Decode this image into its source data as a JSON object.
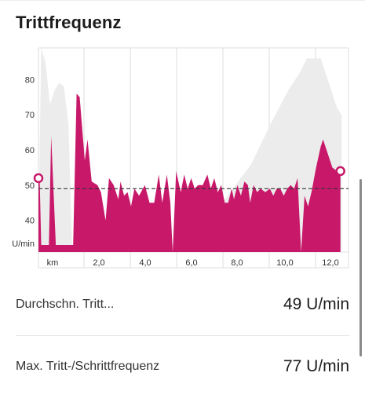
{
  "title": "Trittfrequenz",
  "stats": [
    {
      "label": "Durchschn. Tritt...",
      "value": "49 U/min"
    },
    {
      "label": "Max. Tritt-/Schrittfrequenz",
      "value": "77 U/min"
    }
  ],
  "colors": {
    "cadence": "#c8186a",
    "elevation": "#ececec",
    "grid": "#dcdcdc",
    "average_line": "#333333"
  },
  "chart_data": {
    "type": "area",
    "title": "Trittfrequenz",
    "ylabel": "U/min",
    "xlabel": "km",
    "x_tick_labels": [
      "km",
      "2,0",
      "4,0",
      "6,0",
      "8,0",
      "10,0",
      "12,0"
    ],
    "y_tick_labels": [
      "80",
      "70",
      "60",
      "50",
      "40",
      "U/min"
    ],
    "ylim": [
      31,
      89
    ],
    "xlim": [
      0,
      13.4
    ],
    "average_line": 49,
    "series": [
      {
        "role": "cadence",
        "points": [
          [
            0.0,
            52
          ],
          [
            0.05,
            52
          ],
          [
            0.12,
            33
          ],
          [
            0.45,
            33
          ],
          [
            0.55,
            64
          ],
          [
            0.75,
            33
          ],
          [
            1.5,
            33
          ],
          [
            1.65,
            76
          ],
          [
            1.78,
            75
          ],
          [
            2.0,
            57
          ],
          [
            2.12,
            63
          ],
          [
            2.3,
            51
          ],
          [
            2.55,
            50
          ],
          [
            2.7,
            48
          ],
          [
            2.9,
            40
          ],
          [
            3.05,
            52
          ],
          [
            3.25,
            50
          ],
          [
            3.45,
            46
          ],
          [
            3.55,
            51
          ],
          [
            3.7,
            47
          ],
          [
            3.85,
            48
          ],
          [
            4.0,
            44
          ],
          [
            4.15,
            49
          ],
          [
            4.35,
            47
          ],
          [
            4.6,
            50
          ],
          [
            4.8,
            45
          ],
          [
            5.0,
            45
          ],
          [
            5.2,
            53
          ],
          [
            5.35,
            45
          ],
          [
            5.55,
            53
          ],
          [
            5.7,
            45
          ],
          [
            5.8,
            31
          ],
          [
            5.95,
            54
          ],
          [
            6.15,
            48
          ],
          [
            6.3,
            53
          ],
          [
            6.45,
            49
          ],
          [
            6.6,
            52
          ],
          [
            6.75,
            49
          ],
          [
            6.9,
            50
          ],
          [
            7.1,
            50
          ],
          [
            7.3,
            53
          ],
          [
            7.45,
            49
          ],
          [
            7.6,
            52
          ],
          [
            7.75,
            48
          ],
          [
            7.9,
            50
          ],
          [
            8.05,
            45
          ],
          [
            8.2,
            45
          ],
          [
            8.35,
            49
          ],
          [
            8.45,
            46
          ],
          [
            8.6,
            50
          ],
          [
            8.75,
            47
          ],
          [
            8.9,
            51
          ],
          [
            9.05,
            50
          ],
          [
            9.15,
            45
          ],
          [
            9.3,
            50
          ],
          [
            9.45,
            48
          ],
          [
            9.6,
            49
          ],
          [
            9.8,
            48
          ],
          [
            10.0,
            49
          ],
          [
            10.15,
            47
          ],
          [
            10.3,
            49
          ],
          [
            10.45,
            49
          ],
          [
            10.6,
            47
          ],
          [
            10.75,
            49
          ],
          [
            10.9,
            50
          ],
          [
            11.05,
            49
          ],
          [
            11.2,
            52
          ],
          [
            11.35,
            31
          ],
          [
            11.5,
            47
          ],
          [
            11.65,
            44
          ],
          [
            11.8,
            48
          ],
          [
            12.0,
            55
          ],
          [
            12.2,
            61
          ],
          [
            12.3,
            63
          ],
          [
            12.5,
            59
          ],
          [
            12.7,
            55
          ],
          [
            12.9,
            54
          ],
          [
            13.05,
            54
          ],
          [
            13.05,
            33
          ]
        ]
      },
      {
        "role": "elevation",
        "points": [
          [
            0.0,
            33
          ],
          [
            0.05,
            60
          ],
          [
            0.12,
            89
          ],
          [
            0.3,
            85
          ],
          [
            0.5,
            73
          ],
          [
            0.7,
            77
          ],
          [
            0.9,
            79
          ],
          [
            1.1,
            78
          ],
          [
            1.3,
            67
          ],
          [
            1.45,
            33
          ],
          [
            6.0,
            33
          ],
          [
            6.8,
            38
          ],
          [
            7.6,
            42
          ],
          [
            8.4,
            49
          ],
          [
            9.2,
            56
          ],
          [
            10.0,
            67
          ],
          [
            10.8,
            77
          ],
          [
            11.3,
            82
          ],
          [
            11.6,
            86
          ],
          [
            12.2,
            86
          ],
          [
            12.5,
            80
          ],
          [
            12.9,
            72
          ],
          [
            13.1,
            70
          ],
          [
            13.1,
            33
          ]
        ]
      }
    ],
    "markers": [
      {
        "x": 0.0,
        "y": 52
      },
      {
        "x": 13.05,
        "y": 54
      }
    ]
  }
}
